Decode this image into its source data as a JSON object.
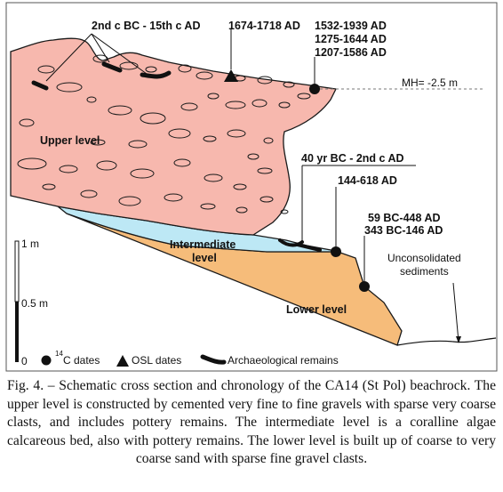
{
  "diagram": {
    "levels": {
      "upper": "Upper level",
      "intermediate_line1": "Intermediate",
      "intermediate_line2": "level",
      "lower": "Lower level",
      "unconsolidated_line1": "Unconsolidated",
      "unconsolidated_line2": "sediments"
    },
    "mh_label": "MH= -2.5 m",
    "dates": {
      "archaeo_range": "2nd c BC - 15th c AD",
      "osl": "1674-1718 AD",
      "c14_top_1": "1532-1939 AD",
      "c14_top_2": "1275-1644 AD",
      "c14_top_3": "1207-1586 AD",
      "mid_1": "40 yr BC - 2nd c AD",
      "mid_2": "144-618 AD",
      "low_1": "59 BC-448 AD",
      "low_2": "343 BC-146 AD"
    },
    "scale": {
      "top": "1 m",
      "mid": "0.5 m",
      "bottom": "0"
    },
    "legend": {
      "c14_sup": "14",
      "c14_text": "C dates",
      "osl": "OSL dates",
      "archaeo": "Archaeological remains"
    },
    "colors": {
      "upper": "#f7b8ae",
      "intermediate": "#bde8f5",
      "lower": "#f6bc7a",
      "outline": "#1a1a1a"
    }
  },
  "caption": "Fig. 4. – Schematic cross section and chronology of the CA14 (St Pol) beachrock. The upper level is constructed by cemented very fine to fine gravels with sparse very coarse clasts, and includes pottery remains. The intermediate level is a coralline algae calcareous bed, also with pottery remains. The lower level is built up of coarse to very coarse sand with sparse fine gravel clasts."
}
